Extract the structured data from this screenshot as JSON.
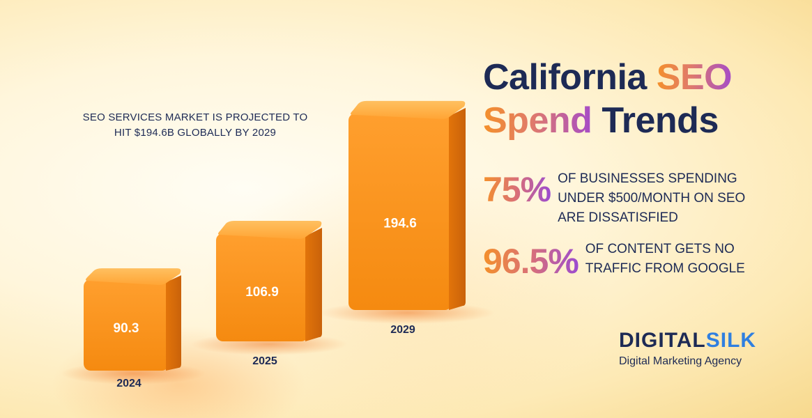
{
  "headline": {
    "line1": "SEO SERVICES MARKET IS PROJECTED TO",
    "line2": "HIT $194.6B GLOBALLY BY 2029"
  },
  "title": {
    "part1": "California",
    "part2": "SEO",
    "part3": "Spend",
    "part4": "Trends"
  },
  "stats": [
    {
      "value": "75%",
      "text": "OF BUSINESSES SPENDING UNDER $500/MONTH ON SEO ARE DISSATISFIED"
    },
    {
      "value": "96.5%",
      "text": "OF CONTENT GETS NO TRAFFIC FROM GOOGLE"
    }
  ],
  "brand": {
    "name_part1": "DIGITAL",
    "name_part2": "SILK",
    "tagline": "Digital Marketing Agency"
  },
  "colors": {
    "navy": "#1d2a55",
    "bar_front": "#f7921a",
    "bar_top": "#ffb347",
    "bar_side": "#d96a08",
    "accent_orange": "#f4902a",
    "accent_purple": "#a54bc8",
    "brand_blue": "#2f7fe0"
  },
  "chart_data": {
    "type": "bar",
    "categories": [
      "2024",
      "2025",
      "2029"
    ],
    "values": [
      90.3,
      106.9,
      194.6
    ],
    "value_labels": [
      "90.3",
      "106.9",
      "194.6"
    ],
    "title": "",
    "xlabel": "",
    "ylabel": "",
    "style": "3d-boxes"
  }
}
